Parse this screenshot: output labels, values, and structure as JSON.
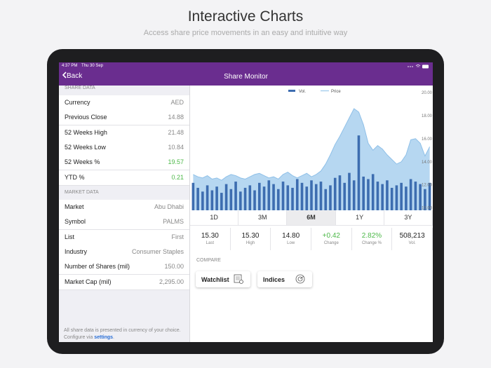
{
  "header": {
    "title": "Interactive Charts",
    "subtitle": "Access share price movements in an easy and intuitive way"
  },
  "status_bar": {
    "time": "4:37 PM",
    "date": "Thu 30 Sep"
  },
  "nav": {
    "back": "Back",
    "title": "Share Monitor"
  },
  "share_data": {
    "heading": "SHARE DATA",
    "rows": [
      {
        "label": "Currency",
        "value": "AED"
      },
      {
        "label": "Previous Close",
        "value": "14.88"
      },
      {
        "label": "52 Weeks High",
        "value": "21.48"
      },
      {
        "label": "52 Weeks Low",
        "value": "10.84"
      },
      {
        "label": "52 Weeks %",
        "value": "19.57",
        "color": "#4cb848"
      },
      {
        "label": "YTD %",
        "value": "0.21",
        "color": "#4cb848"
      }
    ]
  },
  "market_data": {
    "heading": "MARKET DATA",
    "rows": [
      {
        "label": "Market",
        "value": "Abu Dhabi"
      },
      {
        "label": "Symbol",
        "value": "PALMS"
      },
      {
        "label": "List",
        "value": "First"
      },
      {
        "label": "Industry",
        "value": "Consumer Staples"
      },
      {
        "label": "Number of Shares (mil)",
        "value": "150.00"
      },
      {
        "label": "Market Cap (mil)",
        "value": "2,295.00"
      }
    ]
  },
  "footnote": {
    "text": "All share data is presented in currency of your choice. Configure via",
    "link": "settings",
    "end": "."
  },
  "chart_data": {
    "type": "area",
    "series": [
      {
        "name": "Vol.",
        "color": "#3d6db0",
        "axis": "y2",
        "values": [
          22,
          18,
          15,
          20,
          16,
          19,
          14,
          21,
          17,
          23,
          15,
          18,
          20,
          16,
          22,
          19,
          24,
          21,
          17,
          23,
          20,
          18,
          25,
          22,
          19,
          24,
          21,
          23,
          17,
          20,
          26,
          28,
          22,
          30,
          24,
          60,
          27,
          25,
          29,
          23,
          21,
          24,
          18,
          20,
          22,
          19,
          25,
          23,
          21,
          17,
          22
        ]
      },
      {
        "name": "Price",
        "color": "#a9d0ee",
        "values": [
          12.9,
          12.7,
          12.6,
          12.8,
          12.5,
          12.6,
          12.4,
          12.7,
          12.9,
          12.8,
          12.6,
          12.5,
          12.7,
          12.9,
          13.0,
          12.8,
          12.6,
          12.7,
          12.5,
          12.9,
          13.1,
          12.8,
          12.6,
          12.8,
          13.0,
          12.7,
          12.9,
          13.2,
          13.8,
          14.6,
          15.5,
          16.2,
          17.0,
          17.8,
          18.6,
          18.3,
          17.2,
          15.6,
          15.0,
          15.4,
          15.1,
          14.6,
          14.2,
          13.8,
          14.0,
          14.6,
          15.9,
          16.0,
          15.6,
          14.5,
          15.3
        ]
      }
    ],
    "ylim": [
      9.8,
      20.6
    ],
    "yticks": [
      {
        "value": 10,
        "label": "10.00"
      },
      {
        "value": 12,
        "label": "12.00"
      },
      {
        "value": 14,
        "label": "14.00"
      },
      {
        "value": 16,
        "label": "16.00"
      },
      {
        "value": 18,
        "label": "18.00"
      },
      {
        "value": 20,
        "label": "20.00"
      }
    ],
    "y2lim": [
      0,
      100
    ]
  },
  "tabs": {
    "items": [
      "1D",
      "3M",
      "6M",
      "1Y",
      "3Y"
    ],
    "selected": "6M"
  },
  "stats": [
    {
      "value": "15.30",
      "label": "Last"
    },
    {
      "value": "15.30",
      "label": "High"
    },
    {
      "value": "14.80",
      "label": "Low"
    },
    {
      "value": "+0.42",
      "label": "Change",
      "color": "#4cb848"
    },
    {
      "value": "2.82%",
      "label": "Change %",
      "color": "#4cb848"
    },
    {
      "value": "508,213",
      "label": "Vol."
    }
  ],
  "compare": {
    "heading": "COMPARE",
    "buttons": [
      "Watchlist",
      "Indices"
    ]
  }
}
